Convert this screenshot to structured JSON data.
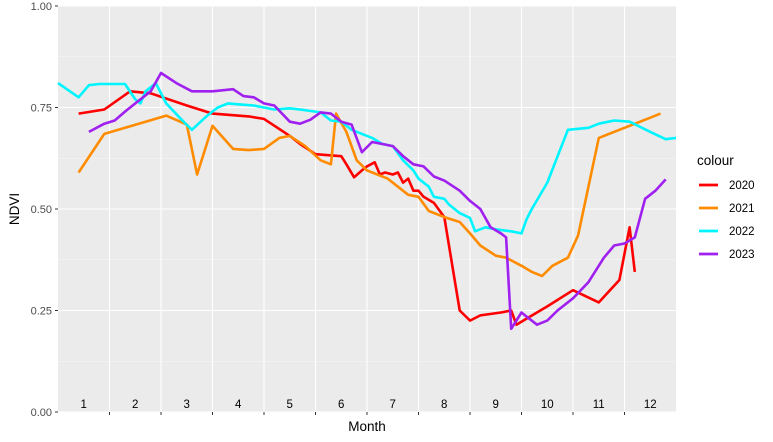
{
  "chart_data": {
    "type": "line",
    "xlabel": "Month",
    "ylabel": "NDVI",
    "ylim": [
      0,
      1
    ],
    "xlim": [
      0.5,
      12.5
    ],
    "y_ticks": [
      "0.00",
      "0.25",
      "0.50",
      "0.75",
      "1.00"
    ],
    "y_tick_values": [
      0,
      0.25,
      0.5,
      0.75,
      1.0
    ],
    "month_labels": [
      "1",
      "2",
      "3",
      "4",
      "5",
      "6",
      "7",
      "8",
      "9",
      "10",
      "11",
      "12"
    ],
    "legend": {
      "title": "colour",
      "position": "right"
    },
    "grid": true,
    "background": "#ebebeb",
    "series": [
      {
        "name": "2020",
        "color": "#ff0000",
        "points": [
          [
            0.9,
            0.735
          ],
          [
            1.4,
            0.745
          ],
          [
            1.9,
            0.79
          ],
          [
            2.3,
            0.785
          ],
          [
            3.0,
            0.755
          ],
          [
            3.5,
            0.735
          ],
          [
            4.2,
            0.728
          ],
          [
            4.5,
            0.722
          ],
          [
            5.0,
            0.68
          ],
          [
            5.2,
            0.66
          ],
          [
            5.5,
            0.635
          ],
          [
            6.0,
            0.63
          ],
          [
            6.1,
            0.61
          ],
          [
            6.25,
            0.578
          ],
          [
            6.4,
            0.595
          ],
          [
            6.5,
            0.605
          ],
          [
            6.65,
            0.615
          ],
          [
            6.75,
            0.585
          ],
          [
            6.85,
            0.59
          ],
          [
            7.0,
            0.585
          ],
          [
            7.1,
            0.59
          ],
          [
            7.2,
            0.565
          ],
          [
            7.3,
            0.575
          ],
          [
            7.4,
            0.545
          ],
          [
            7.5,
            0.545
          ],
          [
            7.6,
            0.53
          ],
          [
            7.8,
            0.515
          ],
          [
            8.0,
            0.48
          ],
          [
            8.3,
            0.25
          ],
          [
            8.5,
            0.225
          ],
          [
            8.7,
            0.238
          ],
          [
            9.1,
            0.245
          ],
          [
            9.3,
            0.25
          ],
          [
            9.4,
            0.215
          ],
          [
            9.6,
            0.23
          ],
          [
            10.0,
            0.26
          ],
          [
            10.5,
            0.3
          ],
          [
            11.0,
            0.27
          ],
          [
            11.4,
            0.325
          ],
          [
            11.6,
            0.455
          ],
          [
            11.7,
            0.345
          ]
        ]
      },
      {
        "name": "2021",
        "color": "#ff8c00",
        "points": [
          [
            0.9,
            0.59
          ],
          [
            1.4,
            0.685
          ],
          [
            1.8,
            0.7
          ],
          [
            2.2,
            0.715
          ],
          [
            2.6,
            0.73
          ],
          [
            3.0,
            0.708
          ],
          [
            3.2,
            0.585
          ],
          [
            3.5,
            0.705
          ],
          [
            3.9,
            0.648
          ],
          [
            4.2,
            0.645
          ],
          [
            4.5,
            0.648
          ],
          [
            4.8,
            0.675
          ],
          [
            5.0,
            0.68
          ],
          [
            5.3,
            0.655
          ],
          [
            5.6,
            0.62
          ],
          [
            5.8,
            0.61
          ],
          [
            5.9,
            0.735
          ],
          [
            6.1,
            0.69
          ],
          [
            6.3,
            0.62
          ],
          [
            6.5,
            0.595
          ],
          [
            6.7,
            0.585
          ],
          [
            6.9,
            0.575
          ],
          [
            7.1,
            0.555
          ],
          [
            7.3,
            0.535
          ],
          [
            7.5,
            0.53
          ],
          [
            7.7,
            0.495
          ],
          [
            8.0,
            0.48
          ],
          [
            8.3,
            0.468
          ],
          [
            8.5,
            0.44
          ],
          [
            8.7,
            0.41
          ],
          [
            9.0,
            0.385
          ],
          [
            9.2,
            0.38
          ],
          [
            9.5,
            0.36
          ],
          [
            9.7,
            0.345
          ],
          [
            9.9,
            0.335
          ],
          [
            10.1,
            0.36
          ],
          [
            10.4,
            0.38
          ],
          [
            10.6,
            0.435
          ],
          [
            11.0,
            0.675
          ],
          [
            11.5,
            0.7
          ],
          [
            12.0,
            0.725
          ],
          [
            12.2,
            0.735
          ]
        ]
      },
      {
        "name": "2022",
        "color": "#00f5ff",
        "points": [
          [
            0.5,
            0.81
          ],
          [
            0.9,
            0.775
          ],
          [
            1.1,
            0.805
          ],
          [
            1.3,
            0.808
          ],
          [
            1.5,
            0.808
          ],
          [
            1.7,
            0.808
          ],
          [
            1.8,
            0.808
          ],
          [
            2.0,
            0.77
          ],
          [
            2.1,
            0.76
          ],
          [
            2.2,
            0.79
          ],
          [
            2.4,
            0.81
          ],
          [
            2.6,
            0.76
          ],
          [
            2.9,
            0.72
          ],
          [
            3.1,
            0.695
          ],
          [
            3.4,
            0.73
          ],
          [
            3.6,
            0.75
          ],
          [
            3.8,
            0.76
          ],
          [
            4.0,
            0.758
          ],
          [
            4.3,
            0.755
          ],
          [
            4.7,
            0.745
          ],
          [
            5.0,
            0.748
          ],
          [
            5.2,
            0.745
          ],
          [
            5.6,
            0.738
          ],
          [
            5.8,
            0.718
          ],
          [
            6.0,
            0.715
          ],
          [
            6.2,
            0.695
          ],
          [
            6.6,
            0.675
          ],
          [
            6.8,
            0.66
          ],
          [
            7.0,
            0.655
          ],
          [
            7.2,
            0.62
          ],
          [
            7.4,
            0.595
          ],
          [
            7.5,
            0.575
          ],
          [
            7.7,
            0.555
          ],
          [
            7.8,
            0.53
          ],
          [
            8.0,
            0.525
          ],
          [
            8.1,
            0.51
          ],
          [
            8.3,
            0.49
          ],
          [
            8.5,
            0.478
          ],
          [
            8.6,
            0.445
          ],
          [
            8.8,
            0.455
          ],
          [
            9.0,
            0.45
          ],
          [
            9.3,
            0.445
          ],
          [
            9.5,
            0.44
          ],
          [
            9.6,
            0.475
          ],
          [
            9.7,
            0.5
          ],
          [
            10.0,
            0.565
          ],
          [
            10.4,
            0.695
          ],
          [
            10.8,
            0.7
          ],
          [
            11.0,
            0.71
          ],
          [
            11.3,
            0.718
          ],
          [
            11.6,
            0.715
          ],
          [
            12.0,
            0.69
          ],
          [
            12.3,
            0.672
          ],
          [
            12.5,
            0.675
          ]
        ]
      },
      {
        "name": "2023",
        "color": "#a020f0",
        "points": [
          [
            1.1,
            0.69
          ],
          [
            1.4,
            0.71
          ],
          [
            1.6,
            0.718
          ],
          [
            1.8,
            0.74
          ],
          [
            2.0,
            0.76
          ],
          [
            2.3,
            0.79
          ],
          [
            2.5,
            0.835
          ],
          [
            2.8,
            0.81
          ],
          [
            3.1,
            0.79
          ],
          [
            3.5,
            0.79
          ],
          [
            3.9,
            0.795
          ],
          [
            4.1,
            0.778
          ],
          [
            4.3,
            0.775
          ],
          [
            4.5,
            0.76
          ],
          [
            4.7,
            0.755
          ],
          [
            5.0,
            0.715
          ],
          [
            5.2,
            0.71
          ],
          [
            5.4,
            0.72
          ],
          [
            5.6,
            0.738
          ],
          [
            5.8,
            0.735
          ],
          [
            6.0,
            0.715
          ],
          [
            6.2,
            0.708
          ],
          [
            6.4,
            0.64
          ],
          [
            6.6,
            0.665
          ],
          [
            6.8,
            0.66
          ],
          [
            7.0,
            0.655
          ],
          [
            7.2,
            0.63
          ],
          [
            7.4,
            0.61
          ],
          [
            7.6,
            0.605
          ],
          [
            7.8,
            0.58
          ],
          [
            8.0,
            0.57
          ],
          [
            8.3,
            0.545
          ],
          [
            8.5,
            0.52
          ],
          [
            8.7,
            0.5
          ],
          [
            8.9,
            0.455
          ],
          [
            9.1,
            0.44
          ],
          [
            9.2,
            0.43
          ],
          [
            9.3,
            0.205
          ],
          [
            9.5,
            0.245
          ],
          [
            9.6,
            0.235
          ],
          [
            9.8,
            0.215
          ],
          [
            10.0,
            0.225
          ],
          [
            10.2,
            0.25
          ],
          [
            10.5,
            0.28
          ],
          [
            10.8,
            0.32
          ],
          [
            11.1,
            0.38
          ],
          [
            11.3,
            0.41
          ],
          [
            11.5,
            0.415
          ],
          [
            11.7,
            0.43
          ],
          [
            11.9,
            0.525
          ],
          [
            12.1,
            0.545
          ],
          [
            12.3,
            0.573
          ]
        ]
      }
    ]
  }
}
